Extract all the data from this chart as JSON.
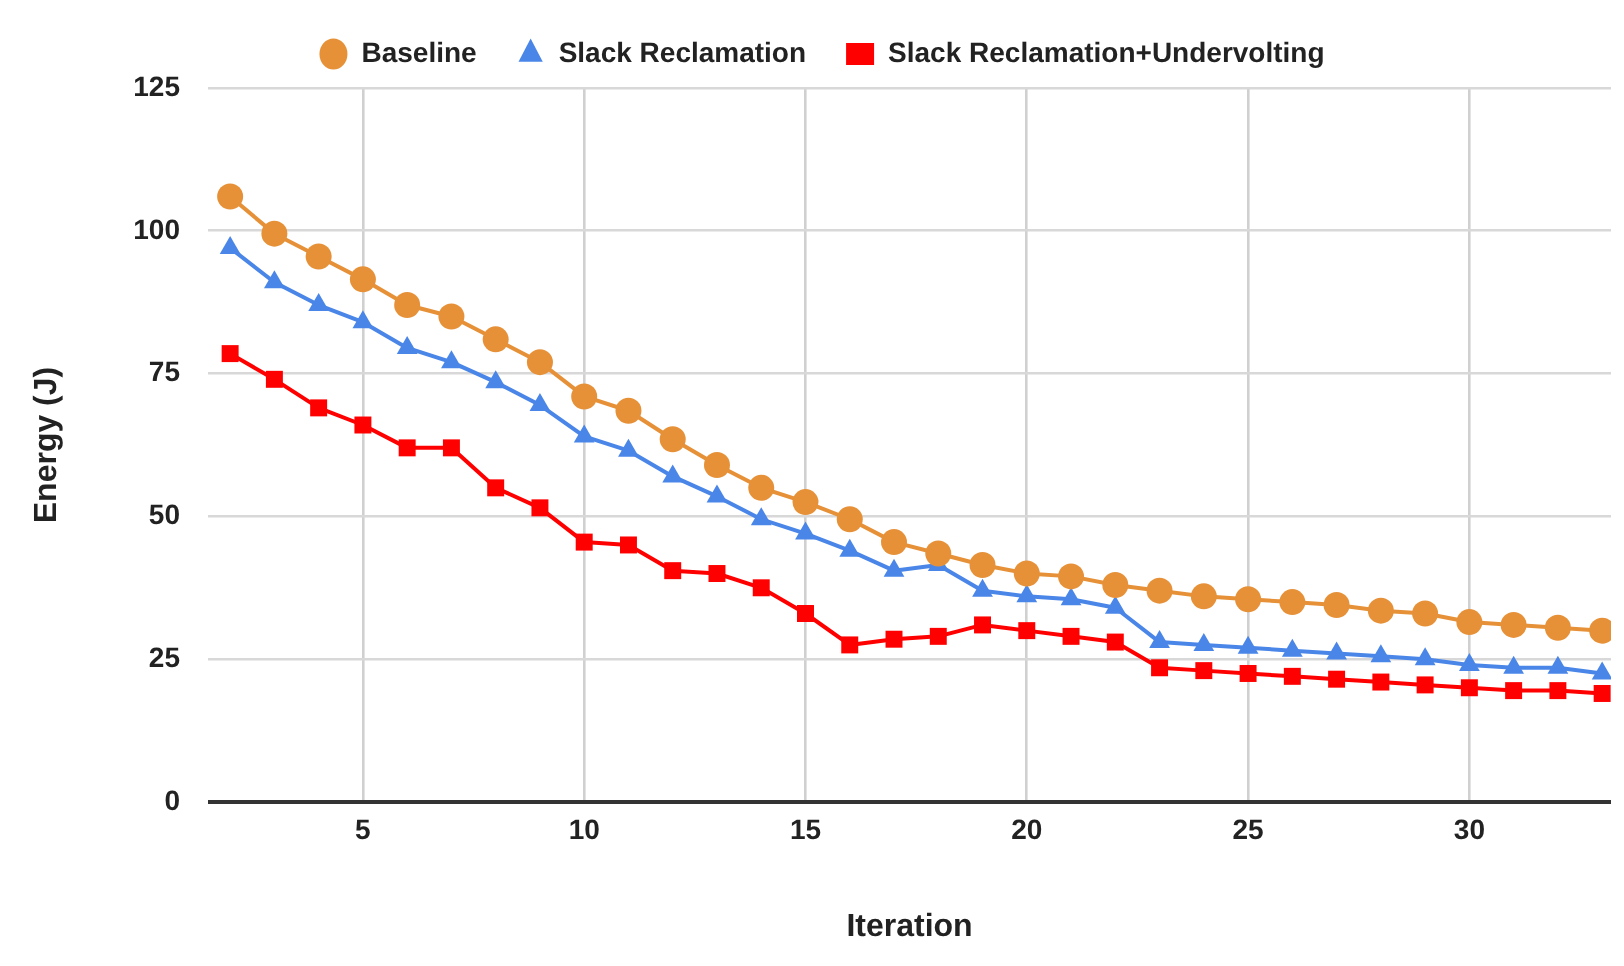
{
  "chart_data": {
    "type": "line",
    "xlabel": "Iteration",
    "ylabel": "Energy (J)",
    "x": [
      2,
      3,
      4,
      5,
      6,
      7,
      8,
      9,
      10,
      11,
      12,
      13,
      14,
      15,
      16,
      17,
      18,
      19,
      20,
      21,
      22,
      23,
      24,
      25,
      26,
      27,
      28,
      29,
      30,
      31,
      32,
      33
    ],
    "series": [
      {
        "name": "Baseline",
        "color": "#e69138",
        "marker": "circle",
        "values": [
          106,
          99.5,
          95.5,
          91.5,
          87,
          85,
          81,
          77,
          71,
          68.5,
          63.5,
          59,
          55,
          52.5,
          49.5,
          45.5,
          43.5,
          41.5,
          40,
          39.5,
          38,
          37,
          36,
          35.5,
          35,
          34.5,
          33.5,
          33,
          31.5,
          31,
          30.5,
          30
        ]
      },
      {
        "name": "Slack Reclamation",
        "color": "#4a86e8",
        "marker": "triangle",
        "values": [
          97,
          91,
          87,
          84,
          79.5,
          77,
          73.5,
          69.5,
          64,
          61.5,
          57,
          53.5,
          49.5,
          47,
          44,
          40.5,
          41.5,
          37,
          36,
          35.5,
          34,
          28,
          27.5,
          27,
          26.5,
          26,
          25.5,
          25,
          24,
          23.5,
          23.5,
          22.5
        ]
      },
      {
        "name": "Slack Reclamation+Undervolting",
        "color": "#ff0000",
        "marker": "square",
        "values": [
          78.5,
          74,
          69,
          66,
          62,
          62,
          55,
          51.5,
          45.5,
          45,
          40.5,
          40,
          37.5,
          33,
          27.5,
          28.5,
          29,
          31,
          30,
          29,
          28,
          23.5,
          23,
          22.5,
          22,
          21.5,
          21,
          20.5,
          20,
          19.5,
          19.5,
          19
        ]
      }
    ],
    "xlim": [
      1.5,
      33.2
    ],
    "xticks": [
      5,
      10,
      15,
      20,
      25,
      30
    ],
    "ylim": [
      0,
      125
    ],
    "yticks": [
      0,
      25,
      50,
      75,
      100,
      125
    ],
    "grid": true,
    "legend": "top",
    "line_style": "solid"
  }
}
